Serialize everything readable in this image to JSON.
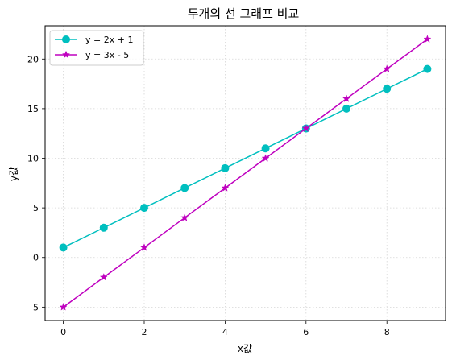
{
  "chart_data": {
    "type": "line",
    "title": "두개의 선 그래프 비교",
    "xlabel": "x값",
    "ylabel": "y값",
    "x": [
      0,
      1,
      2,
      3,
      4,
      5,
      6,
      7,
      8,
      9
    ],
    "series": [
      {
        "name": "y = 2x + 1",
        "values": [
          1,
          3,
          5,
          7,
          9,
          11,
          13,
          15,
          17,
          19
        ],
        "color": "#00bfbf",
        "marker": "circle"
      },
      {
        "name": "y = 3x - 5",
        "values": [
          -5,
          -2,
          1,
          4,
          7,
          10,
          13,
          16,
          19,
          22
        ],
        "color": "#bf00bf",
        "marker": "star"
      }
    ],
    "xlim": [
      -0.45,
      9.45
    ],
    "ylim": [
      -6.35,
      23.35
    ],
    "xticks": [
      0,
      2,
      4,
      6,
      8
    ],
    "yticks": [
      -5,
      0,
      5,
      10,
      15,
      20
    ],
    "grid": true,
    "grid_style": "dotted",
    "legend_position": "upper-left"
  }
}
